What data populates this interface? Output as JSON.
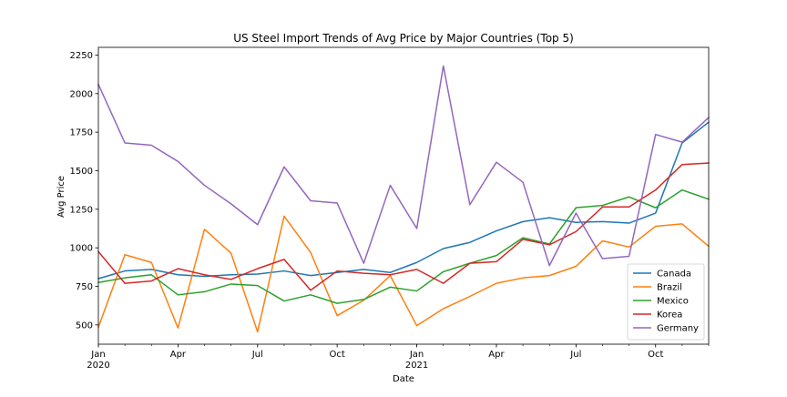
{
  "chart_data": {
    "type": "line",
    "title": "US Steel Import Trends of Avg Price by Major Countries (Top 5)",
    "xlabel": "Date",
    "ylabel": "Avg Price",
    "x": [
      "2020-01",
      "2020-02",
      "2020-03",
      "2020-04",
      "2020-05",
      "2020-06",
      "2020-07",
      "2020-08",
      "2020-09",
      "2020-10",
      "2020-11",
      "2020-12",
      "2021-01",
      "2021-02",
      "2021-03",
      "2021-04",
      "2021-05",
      "2021-06",
      "2021-07",
      "2021-08",
      "2021-09",
      "2021-10",
      "2021-11",
      "2021-12"
    ],
    "xlim": [
      "2020-01",
      "2021-12"
    ],
    "ylim": [
      375,
      2300
    ],
    "y_ticks": [
      500,
      750,
      1000,
      1250,
      1500,
      1750,
      2000,
      2250
    ],
    "y_tick_labels": [
      "500",
      "750",
      "1000",
      "1250",
      "1500",
      "1750",
      "2000",
      "2250"
    ],
    "x_ticks": [
      {
        "x": "2020-01",
        "label": "Jan",
        "sublabel": "2020"
      },
      {
        "x": "2020-04",
        "label": "Apr",
        "sublabel": ""
      },
      {
        "x": "2020-07",
        "label": "Jul",
        "sublabel": ""
      },
      {
        "x": "2020-10",
        "label": "Oct",
        "sublabel": ""
      },
      {
        "x": "2021-01",
        "label": "Jan",
        "sublabel": "2021"
      },
      {
        "x": "2021-04",
        "label": "Apr",
        "sublabel": ""
      },
      {
        "x": "2021-07",
        "label": "Jul",
        "sublabel": ""
      },
      {
        "x": "2021-10",
        "label": "Oct",
        "sublabel": ""
      }
    ],
    "grid": false,
    "legend_position": "lower-right",
    "series": [
      {
        "name": "Canada",
        "color": "#1f77b4",
        "values": [
          800,
          850,
          860,
          825,
          815,
          825,
          830,
          850,
          820,
          840,
          860,
          840,
          905,
          995,
          1035,
          1110,
          1170,
          1195,
          1165,
          1170,
          1160,
          1225,
          1680,
          1815
        ]
      },
      {
        "name": "Brazil",
        "color": "#ff7f0e",
        "values": [
          485,
          955,
          905,
          480,
          1120,
          965,
          455,
          1205,
          970,
          560,
          660,
          820,
          495,
          605,
          685,
          770,
          805,
          820,
          880,
          1045,
          1005,
          1140,
          1155,
          1010
        ]
      },
      {
        "name": "Mexico",
        "color": "#2ca02c",
        "values": [
          775,
          805,
          825,
          695,
          715,
          765,
          755,
          655,
          695,
          640,
          665,
          745,
          720,
          845,
          900,
          950,
          1065,
          1025,
          1260,
          1275,
          1330,
          1260,
          1375,
          1315
        ]
      },
      {
        "name": "Korea",
        "color": "#d62728",
        "values": [
          975,
          770,
          785,
          865,
          825,
          795,
          865,
          925,
          725,
          850,
          835,
          825,
          860,
          770,
          900,
          910,
          1055,
          1020,
          1105,
          1265,
          1265,
          1375,
          1540,
          1550
        ]
      },
      {
        "name": "Germany",
        "color": "#9467bd",
        "values": [
          2060,
          1680,
          1665,
          1560,
          1405,
          1285,
          1150,
          1525,
          1305,
          1290,
          900,
          1405,
          1125,
          2180,
          1280,
          1555,
          1425,
          885,
          1225,
          930,
          945,
          1735,
          1685,
          1845
        ]
      }
    ]
  }
}
